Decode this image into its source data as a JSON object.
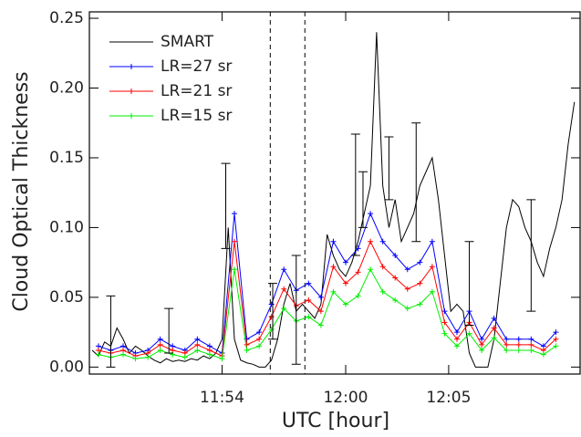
{
  "chart_data": {
    "type": "line",
    "xlabel": "UTC [hour]",
    "ylabel": "Cloud Optical Thickness",
    "xlim": [
      11.7927,
      12.1896
    ],
    "ylim": [
      -0.005,
      0.2546
    ],
    "xticks": [
      {
        "value": 11.9,
        "label": "11:54"
      },
      {
        "value": 12.0,
        "label": "12:00"
      },
      {
        "value": 12.0833,
        "label": "12:05"
      }
    ],
    "yticks": [
      {
        "value": 0,
        "label": "0.00"
      },
      {
        "value": 0.05,
        "label": "0.05"
      },
      {
        "value": 0.1,
        "label": "0.10"
      },
      {
        "value": 0.15,
        "label": "0.15"
      },
      {
        "value": 0.2,
        "label": "0.20"
      },
      {
        "value": 0.25,
        "label": "0.25"
      }
    ],
    "legend": "upper left",
    "vlines": [
      11.939,
      11.967
    ],
    "series": [
      {
        "name": "SMART",
        "color": "#000000",
        "marker": false,
        "x": [
          11.795,
          11.8,
          11.805,
          11.81,
          11.815,
          11.82,
          11.825,
          11.83,
          11.835,
          11.84,
          11.845,
          11.85,
          11.855,
          11.86,
          11.865,
          11.87,
          11.875,
          11.88,
          11.885,
          11.89,
          11.895,
          11.9,
          11.905,
          11.91,
          11.915,
          11.92,
          11.925,
          11.93,
          11.935,
          11.94,
          11.945,
          11.95,
          11.955,
          11.96,
          11.965,
          11.97,
          11.975,
          11.98,
          11.985,
          11.99,
          11.995,
          12.0,
          12.005,
          12.01,
          12.015,
          12.02,
          12.025,
          12.03,
          12.035,
          12.04,
          12.045,
          12.05,
          12.055,
          12.06,
          12.065,
          12.07,
          12.075,
          12.08,
          12.085,
          12.09,
          12.095,
          12.1,
          12.105,
          12.11,
          12.115,
          12.12,
          12.125,
          12.13,
          12.135,
          12.14,
          12.145,
          12.15,
          12.155,
          12.16,
          12.165,
          12.17,
          12.175,
          12.18,
          12.185
        ],
        "values": [
          0.012,
          0.008,
          0.018,
          0.015,
          0.028,
          0.02,
          0.01,
          0.015,
          0.012,
          0.008,
          0.005,
          0.003,
          0.006,
          0.004,
          0.005,
          0.004,
          0.006,
          0.005,
          0.008,
          0.006,
          0.01,
          0.02,
          0.1,
          0.02,
          0.005,
          0.003,
          0.002,
          0,
          0,
          0.005,
          0.02,
          0.045,
          0.06,
          0.04,
          0.045,
          0.04,
          0.035,
          0.045,
          0.095,
          0.08,
          0.07,
          0.065,
          0.075,
          0.09,
          0.11,
          0.13,
          0.24,
          0.13,
          0.1,
          0.12,
          0.09,
          0.1,
          0.11,
          0.13,
          0.14,
          0.15,
          0.12,
          0.08,
          0.04,
          0.045,
          0.04,
          0.01,
          0,
          0,
          0,
          0.02,
          0.06,
          0.1,
          0.12,
          0.115,
          0.1,
          0.09,
          0.075,
          0.065,
          0.085,
          0.1,
          0.12,
          0.16,
          0.19
        ]
      },
      {
        "name": "LR=27 sr",
        "color": "#0000ff",
        "marker": true,
        "x": [
          11.8,
          11.81,
          11.82,
          11.83,
          11.84,
          11.85,
          11.86,
          11.87,
          11.88,
          11.89,
          11.9,
          11.91,
          11.92,
          11.93,
          11.94,
          11.95,
          11.96,
          11.97,
          11.98,
          11.99,
          12.0,
          12.01,
          12.02,
          12.03,
          12.04,
          12.05,
          12.06,
          12.07,
          12.08,
          12.09,
          12.1,
          12.11,
          12.12,
          12.13,
          12.14,
          12.15,
          12.16,
          12.17
        ],
        "values": [
          0.015,
          0.012,
          0.015,
          0.01,
          0.012,
          0.02,
          0.015,
          0.012,
          0.02,
          0.015,
          0.01,
          0.11,
          0.02,
          0.025,
          0.045,
          0.07,
          0.055,
          0.06,
          0.05,
          0.09,
          0.075,
          0.085,
          0.11,
          0.09,
          0.08,
          0.07,
          0.075,
          0.09,
          0.04,
          0.025,
          0.04,
          0.02,
          0.035,
          0.02,
          0.02,
          0.02,
          0.015,
          0.025
        ]
      },
      {
        "name": "LR=21 sr",
        "color": "#ff0000",
        "marker": true,
        "x": [
          11.8,
          11.81,
          11.82,
          11.83,
          11.84,
          11.85,
          11.86,
          11.87,
          11.88,
          11.89,
          11.9,
          11.91,
          11.92,
          11.93,
          11.94,
          11.95,
          11.96,
          11.97,
          11.98,
          11.99,
          12.0,
          12.01,
          12.02,
          12.03,
          12.04,
          12.05,
          12.06,
          12.07,
          12.08,
          12.09,
          12.1,
          12.11,
          12.12,
          12.13,
          12.14,
          12.15,
          12.16,
          12.17
        ],
        "values": [
          0.012,
          0.01,
          0.012,
          0.008,
          0.01,
          0.016,
          0.012,
          0.01,
          0.016,
          0.012,
          0.008,
          0.09,
          0.016,
          0.02,
          0.036,
          0.056,
          0.044,
          0.048,
          0.04,
          0.072,
          0.06,
          0.068,
          0.09,
          0.072,
          0.064,
          0.056,
          0.06,
          0.072,
          0.032,
          0.02,
          0.032,
          0.016,
          0.028,
          0.016,
          0.016,
          0.016,
          0.012,
          0.02
        ]
      },
      {
        "name": "LR=15 sr",
        "color": "#00ee00",
        "marker": true,
        "x": [
          11.8,
          11.81,
          11.82,
          11.83,
          11.84,
          11.85,
          11.86,
          11.87,
          11.88,
          11.89,
          11.9,
          11.91,
          11.92,
          11.93,
          11.94,
          11.95,
          11.96,
          11.97,
          11.98,
          11.99,
          12.0,
          12.01,
          12.02,
          12.03,
          12.04,
          12.05,
          12.06,
          12.07,
          12.08,
          12.09,
          12.1,
          12.11,
          12.12,
          12.13,
          12.14,
          12.15,
          12.16,
          12.17
        ],
        "values": [
          0.009,
          0.007,
          0.009,
          0.006,
          0.007,
          0.012,
          0.009,
          0.007,
          0.012,
          0.009,
          0.006,
          0.07,
          0.012,
          0.015,
          0.027,
          0.042,
          0.033,
          0.036,
          0.03,
          0.054,
          0.045,
          0.051,
          0.07,
          0.054,
          0.048,
          0.042,
          0.045,
          0.054,
          0.024,
          0.015,
          0.024,
          0.012,
          0.021,
          0.012,
          0.012,
          0.012,
          0.009,
          0.015
        ]
      }
    ],
    "error_bars": {
      "color": "#000000",
      "x": [
        11.81,
        11.857,
        11.903,
        11.941,
        11.96,
        12.008,
        12.014,
        12.035,
        12.057,
        12.1,
        12.15
      ],
      "low": [
        0,
        0.01,
        0.085,
        0.02,
        0.002,
        0.08,
        0.1,
        0.12,
        0.09,
        0.03,
        0.04
      ],
      "high": [
        0.051,
        0.042,
        0.146,
        0.06,
        0.08,
        0.167,
        0.14,
        0.165,
        0.175,
        0.09,
        0.12
      ]
    }
  }
}
